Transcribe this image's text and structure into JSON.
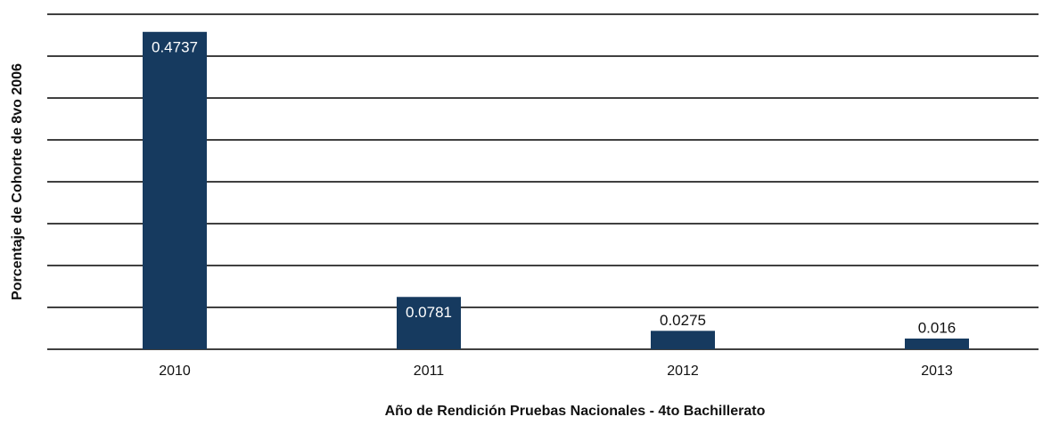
{
  "chart_data": {
    "type": "bar",
    "x_label": "Año de Rendición Pruebas Nacionales - 4to Bachillerato",
    "y_label": "Porcentaje de Cohorte de 8vo 2006",
    "categories": [
      "2010",
      "2011",
      "2012",
      "2013"
    ],
    "values": [
      0.4737,
      0.0781,
      0.0275,
      0.016
    ],
    "color": "#163a5f",
    "ylim": [
      0,
      0.5
    ],
    "yticks": [
      0,
      0.0625,
      0.125,
      0.1875,
      0.25,
      0.3125,
      0.375,
      0.4375,
      0.5
    ],
    "grid": true
  }
}
